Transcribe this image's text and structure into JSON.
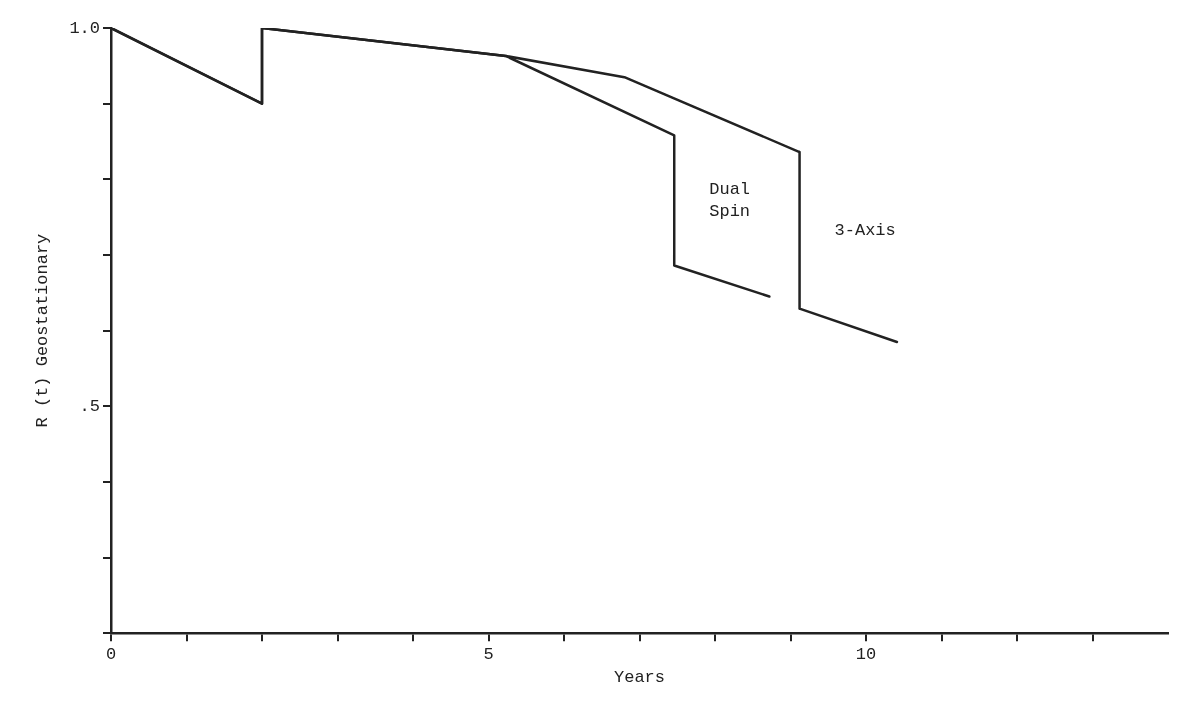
{
  "chart_data": {
    "type": "line",
    "xlabel": "Years",
    "ylabel": "R (t) Geostationary",
    "series": [
      {
        "name": "Dual Spin",
        "color": "#222222",
        "x": [
          0,
          2,
          2,
          5.23,
          7.46,
          7.46,
          8.72
        ],
        "values": [
          1.0,
          0.9,
          1.0,
          0.963,
          0.858,
          0.686,
          0.645
        ]
      },
      {
        "name": "3-Axis",
        "color": "#222222",
        "x": [
          0,
          2,
          2,
          5.23,
          6.8,
          9.12,
          9.12,
          10.41
        ],
        "values": [
          1.0,
          0.9,
          1.0,
          0.963,
          0.935,
          0.836,
          0.629,
          0.585
        ]
      }
    ],
    "xlim": [
      0,
      14
    ],
    "xticks": [
      0,
      {
        "value": 1,
        "label": null
      },
      {
        "value": 2,
        "label": null
      },
      {
        "value": 3,
        "label": null
      },
      {
        "value": 4,
        "label": null
      },
      5,
      {
        "value": 6,
        "label": null
      },
      {
        "value": 7,
        "label": null
      },
      {
        "value": 8,
        "label": null
      },
      {
        "value": 9,
        "label": null
      },
      10,
      {
        "value": 11,
        "label": null
      },
      {
        "value": 12,
        "label": null
      },
      {
        "value": 13,
        "label": null
      }
    ],
    "ylim": [
      0.2,
      1.0
    ],
    "yticks": [
      {
        "value": 0.2,
        "label": null
      },
      {
        "value": 0.3,
        "label": null
      },
      {
        "value": 0.4,
        "label": null
      },
      {
        "value": 0.5,
        "label": ".5"
      },
      {
        "value": 0.6,
        "label": null
      },
      {
        "value": 0.7,
        "label": null
      },
      {
        "value": 0.8,
        "label": null
      },
      {
        "value": 0.9,
        "label": null
      },
      {
        "value": 1.0,
        "label": "1.0"
      }
    ],
    "grid": false,
    "legend": false,
    "marker": "none",
    "line_style": "solid"
  }
}
